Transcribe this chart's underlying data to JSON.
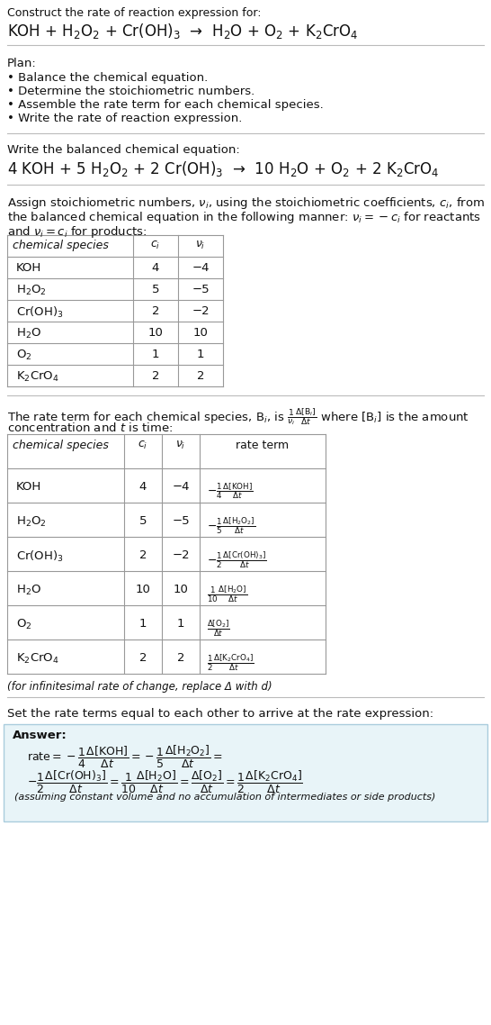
{
  "title_line1": "Construct the rate of reaction expression for:",
  "reaction_unbalanced": "KOH + H$_2$O$_2$ + Cr(OH)$_3$  →  H$_2$O + O$_2$ + K$_2$CrO$_4$",
  "plan_header": "Plan:",
  "plan_items": [
    "• Balance the chemical equation.",
    "• Determine the stoichiometric numbers.",
    "• Assemble the rate term for each chemical species.",
    "• Write the rate of reaction expression."
  ],
  "balanced_header": "Write the balanced chemical equation:",
  "reaction_balanced": "4 KOH + 5 H$_2$O$_2$ + 2 Cr(OH)$_3$  →  10 H$_2$O + O$_2$ + 2 K$_2$CrO$_4$",
  "table1_headers": [
    "chemical species",
    "$c_i$",
    "$\\nu_i$"
  ],
  "table1_data": [
    [
      "KOH",
      "4",
      "−4"
    ],
    [
      "H$_2$O$_2$",
      "5",
      "−5"
    ],
    [
      "Cr(OH)$_3$",
      "2",
      "−2"
    ],
    [
      "H$_2$O",
      "10",
      "10"
    ],
    [
      "O$_2$",
      "1",
      "1"
    ],
    [
      "K$_2$CrO$_4$",
      "2",
      "2"
    ]
  ],
  "table2_headers": [
    "chemical species",
    "$c_i$",
    "$\\nu_i$",
    "rate term"
  ],
  "table2_data": [
    [
      "KOH",
      "4",
      "−4",
      "$-\\frac{1}{4}\\frac{\\Delta[\\mathrm{KOH}]}{\\Delta t}$"
    ],
    [
      "H$_2$O$_2$",
      "5",
      "−5",
      "$-\\frac{1}{5}\\frac{\\Delta[\\mathrm{H_2O_2}]}{\\Delta t}$"
    ],
    [
      "Cr(OH)$_3$",
      "2",
      "−2",
      "$-\\frac{1}{2}\\frac{\\Delta[\\mathrm{Cr(OH)_3}]}{\\Delta t}$"
    ],
    [
      "H$_2$O",
      "10",
      "10",
      "$\\frac{1}{10}\\frac{\\Delta[\\mathrm{H_2O}]}{\\Delta t}$"
    ],
    [
      "O$_2$",
      "1",
      "1",
      "$\\frac{\\Delta[\\mathrm{O_2}]}{\\Delta t}$"
    ],
    [
      "K$_2$CrO$_4$",
      "2",
      "2",
      "$\\frac{1}{2}\\frac{\\Delta[\\mathrm{K_2CrO_4}]}{\\Delta t}$"
    ]
  ],
  "infinitesimal_note": "(for infinitesimal rate of change, replace Δ with d)",
  "set_rate_header": "Set the rate terms equal to each other to arrive at the rate expression:",
  "answer_label": "Answer:",
  "background_color": "#ffffff",
  "table_border_color": "#999999",
  "answer_box_bg": "#e8f4f8",
  "answer_box_border": "#aaccdd",
  "answer_note": "(assuming constant volume and no accumulation of intermediates or side products)"
}
